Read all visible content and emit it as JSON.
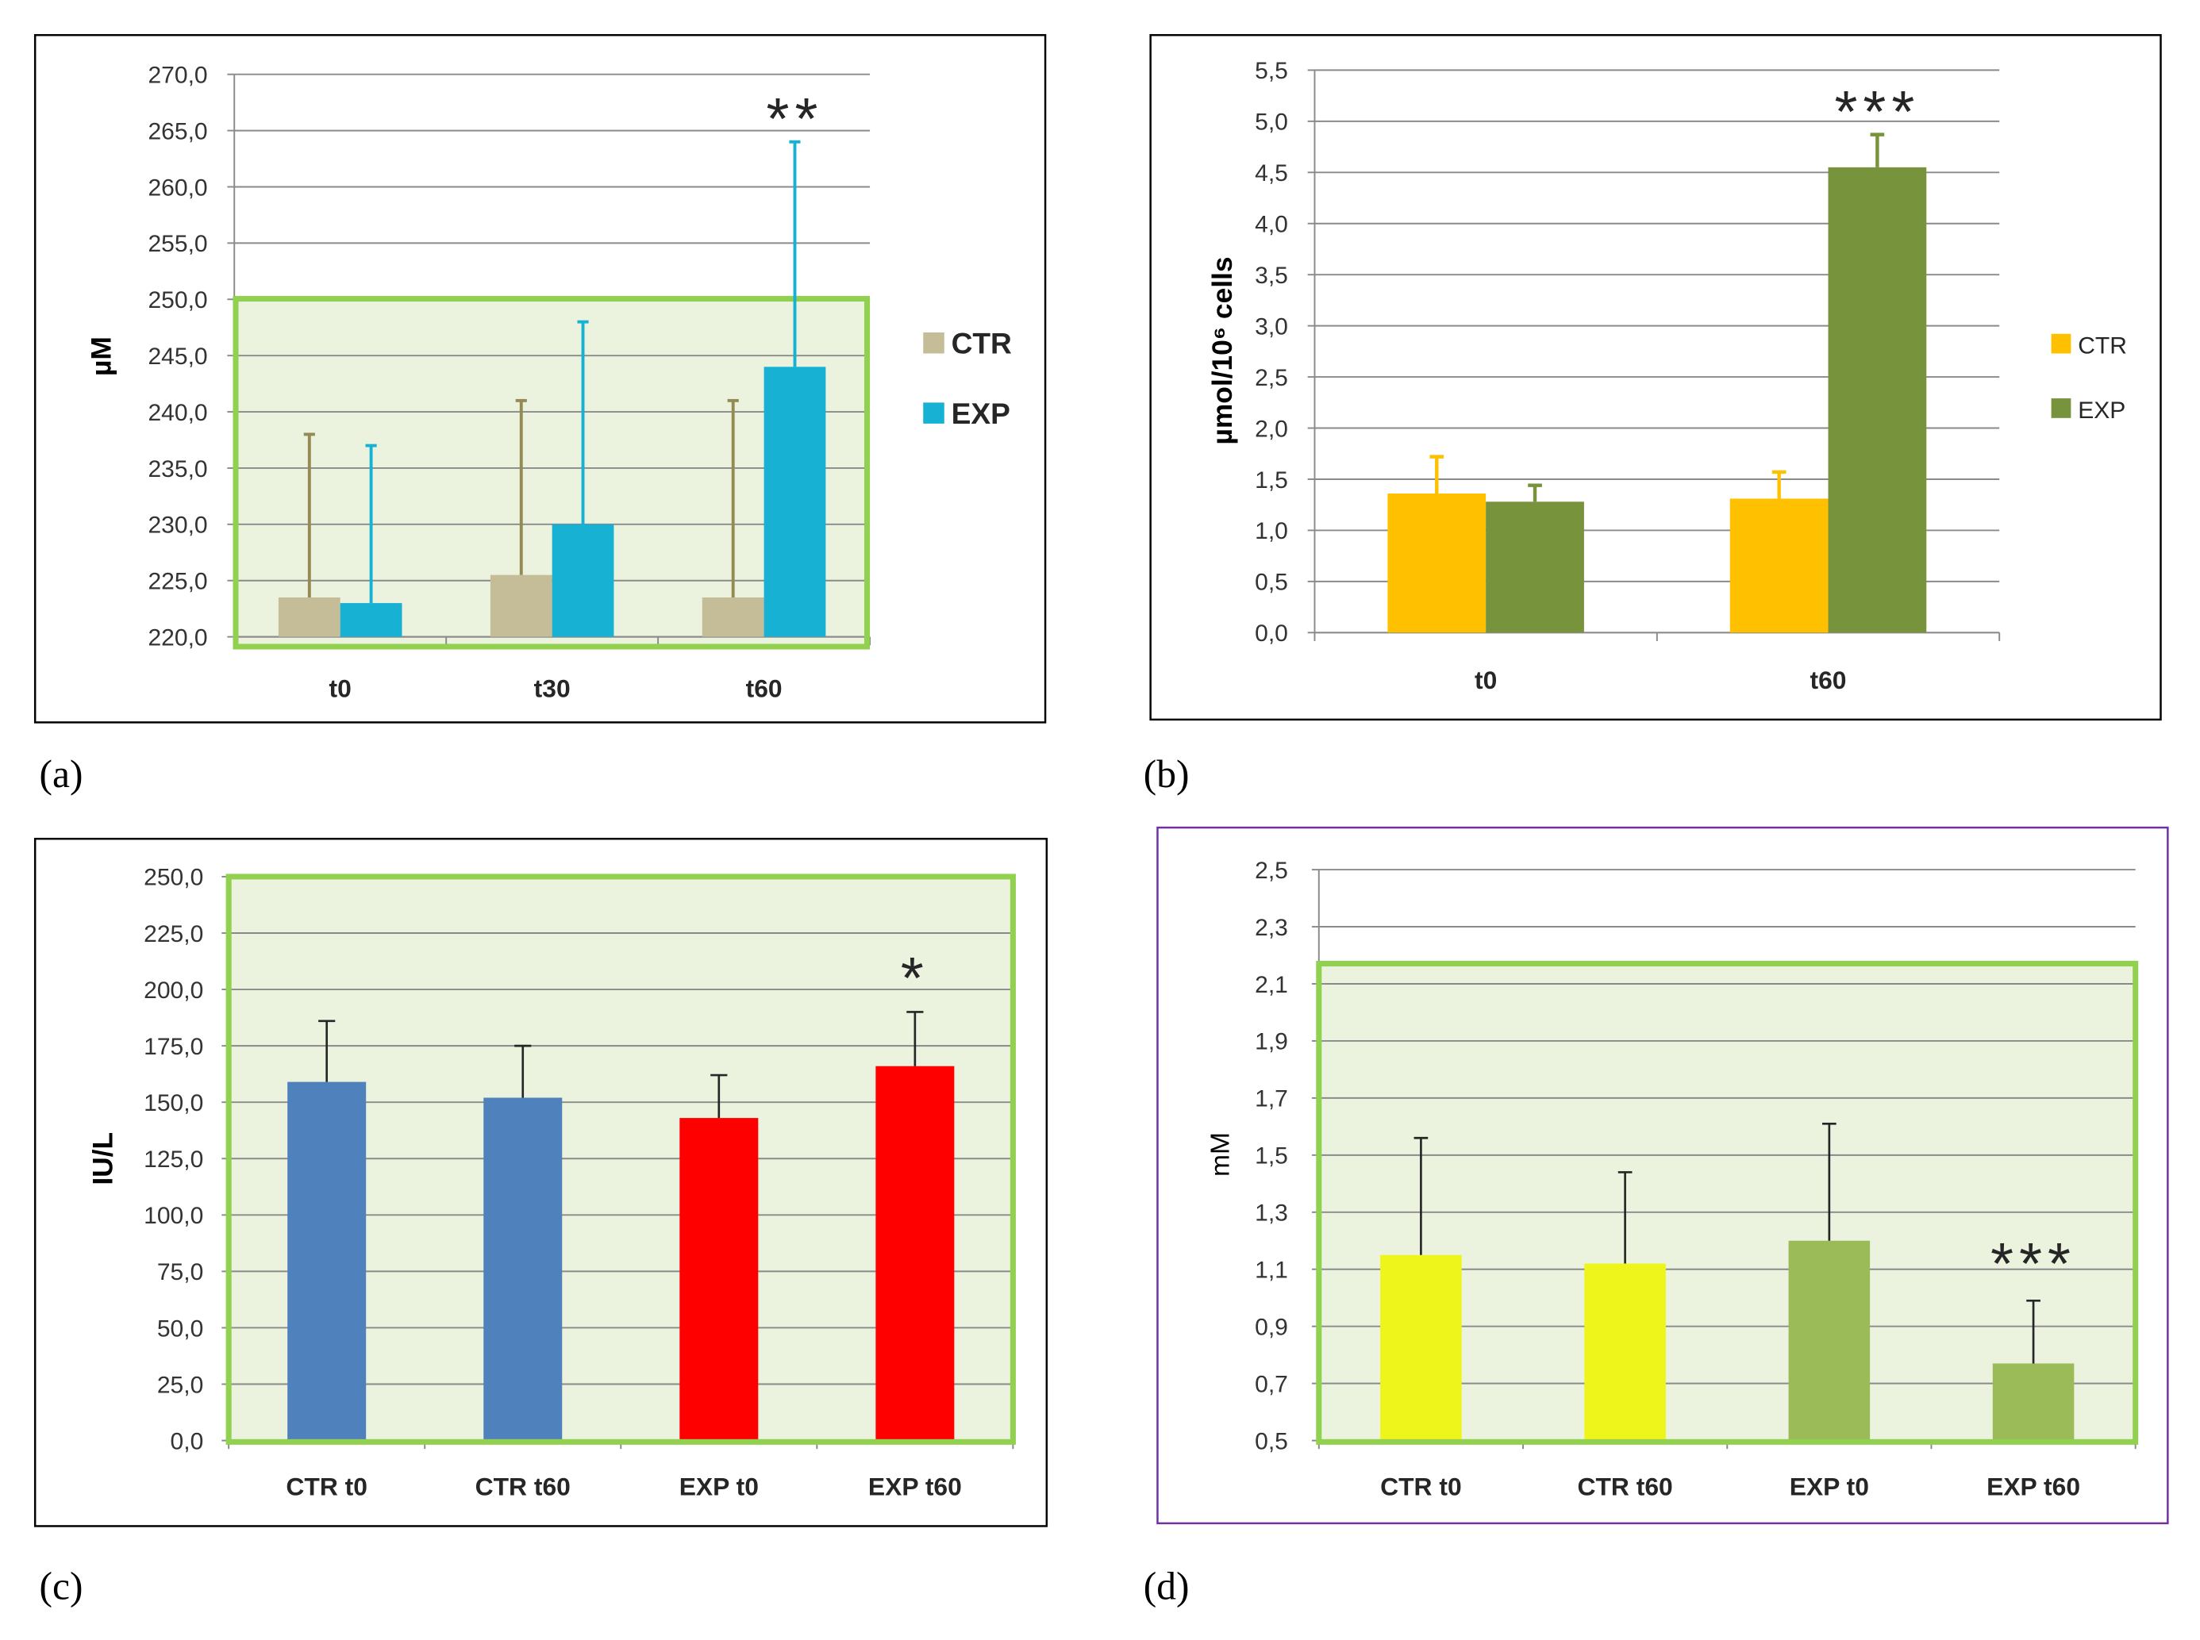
{
  "chart_data": [
    {
      "panel_label": "(a)",
      "type": "bar",
      "ylabel": "µM",
      "ylim": [
        220,
        270
      ],
      "yticks": [
        "220,0",
        "225,0",
        "230,0",
        "235,0",
        "240,0",
        "245,0",
        "250,0",
        "255,0",
        "260,0",
        "265,0",
        "270,0"
      ],
      "categories": [
        "t0",
        "t30",
        "t60"
      ],
      "series": [
        {
          "name": "CTR",
          "values": [
            223.5,
            225.5,
            223.5
          ],
          "error": [
            14.5,
            15.5,
            17.5
          ],
          "color": "#c4bd97",
          "error_color": "#948a54"
        },
        {
          "name": "EXP",
          "values": [
            223.0,
            230.0,
            244.0
          ],
          "error": [
            14.0,
            18.0,
            20.0
          ],
          "color": "#17b1d4",
          "error_color": "#17b1d4"
        }
      ],
      "legend": "right",
      "grid": true,
      "highlight": {
        "stroke": "#92d050",
        "fill": "#ebf3df"
      },
      "annotations": [
        {
          "category": "t60",
          "series": "EXP",
          "text": "**"
        }
      ]
    },
    {
      "panel_label": "(b)",
      "type": "bar",
      "ylabel": "µmol/10⁶ cells",
      "ylim": [
        0,
        5.5
      ],
      "yticks": [
        "0,0",
        "0,5",
        "1,0",
        "1,5",
        "2,0",
        "2,5",
        "3,0",
        "3,5",
        "4,0",
        "4,5",
        "5,0",
        "5,5"
      ],
      "categories": [
        "t0",
        "t60"
      ],
      "series": [
        {
          "name": "CTR",
          "values": [
            1.36,
            1.31
          ],
          "error": [
            0.36,
            0.26
          ],
          "color": "#ffc000",
          "error_color": "#ffc000"
        },
        {
          "name": "EXP",
          "values": [
            1.28,
            4.55
          ],
          "error": [
            0.16,
            0.32
          ],
          "color": "#77933c",
          "error_color": "#77933c"
        }
      ],
      "legend": "right",
      "grid": true,
      "annotations": [
        {
          "category": "t60",
          "series": "EXP",
          "text": "***"
        }
      ]
    },
    {
      "panel_label": "(c)",
      "type": "bar",
      "ylabel": "IU/L",
      "ylim": [
        0,
        250
      ],
      "yticks": [
        "0,0",
        "25,0",
        "50,0",
        "75,0",
        "100,0",
        "125,0",
        "150,0",
        "175,0",
        "200,0",
        "225,0",
        "250,0"
      ],
      "categories": [
        "CTR t0",
        "CTR t60",
        "EXP t0",
        "EXP t60"
      ],
      "series": [
        {
          "values": [
            159,
            152,
            143,
            166
          ],
          "error": [
            27,
            23,
            19,
            24
          ],
          "colors": [
            "#4f81bd",
            "#4f81bd",
            "#ff0000",
            "#ff0000"
          ],
          "error_color": "#262626"
        }
      ],
      "legend": "none",
      "grid": true,
      "highlight": {
        "stroke": "#92d050",
        "fill": "#ebf3df"
      },
      "annotations": [
        {
          "category": "EXP t60",
          "text": "*"
        }
      ]
    },
    {
      "panel_label": "(d)",
      "type": "bar",
      "ylabel": "mM",
      "ylim": [
        0.5,
        2.5
      ],
      "yticks": [
        "0,5",
        "0,7",
        "0,9",
        "1,1",
        "1,3",
        "1,5",
        "1,7",
        "1,9",
        "2,1",
        "2,3",
        "2,5"
      ],
      "categories": [
        "CTR t0",
        "CTR t60",
        "EXP t0",
        "EXP t60"
      ],
      "series": [
        {
          "values": [
            1.15,
            1.12,
            1.2,
            0.77
          ],
          "error": [
            0.41,
            0.32,
            0.41,
            0.22
          ],
          "colors": [
            "#eef51a",
            "#eef51a",
            "#9bbb59",
            "#9bbb59"
          ],
          "error_color": "#262626"
        }
      ],
      "legend": "none",
      "grid": true,
      "highlight": {
        "stroke": "#92d050",
        "fill": "#ebf3df"
      },
      "annotations": [
        {
          "category": "EXP t60",
          "text": "***"
        }
      ]
    }
  ]
}
